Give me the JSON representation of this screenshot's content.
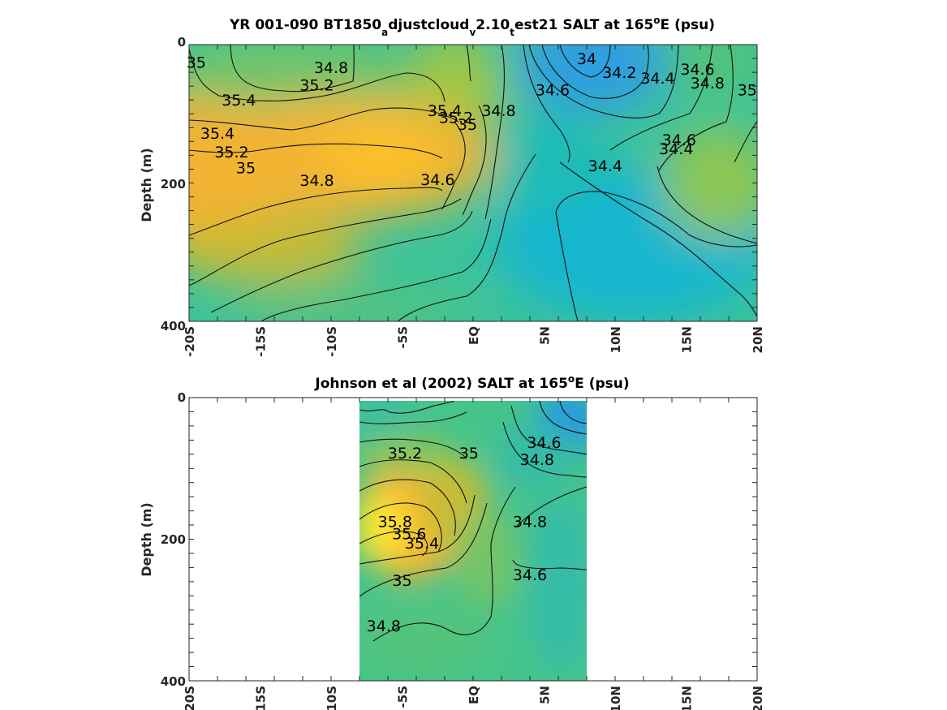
{
  "chart_data": [
    {
      "type": "heatmap",
      "title": {
        "pre": "YR 001-090 BT1850",
        "sub1": "a",
        "mid1": "djustcloud",
        "sub2": "v",
        "mid2": "2.10",
        "sub3": "t",
        "mid3": "est21 SALT at 165",
        "sup": "o",
        "post": "E (psu)"
      },
      "ylabel": "Depth (m)",
      "xlim": [
        -20,
        20
      ],
      "ylim": [
        0,
        400
      ],
      "y_reversed": true,
      "xticklabels": [
        "-20S",
        "-15S",
        "-10S",
        "-5S",
        "EQ",
        "5N",
        "10N",
        "15N",
        "20N"
      ],
      "yticklabels": [
        "0",
        "200",
        "400"
      ],
      "data_extent_x": [
        -20,
        20
      ],
      "field_samples": [
        {
          "lat": -19,
          "depth": 200,
          "salt": 35.5
        },
        {
          "lat": -6,
          "depth": 190,
          "salt": 35.55
        },
        {
          "lat": -12,
          "depth": 40,
          "salt": 34.75
        },
        {
          "lat": 8,
          "depth": 30,
          "salt": 33.95
        },
        {
          "lat": 10,
          "depth": 330,
          "salt": 34.35
        },
        {
          "lat": 19,
          "depth": 200,
          "salt": 34.95
        }
      ],
      "contour_labels": [
        {
          "text": "35",
          "lat": -19.5,
          "depth": 25
        },
        {
          "text": "34.8",
          "lat": -10,
          "depth": 33
        },
        {
          "text": "35.2",
          "lat": -11,
          "depth": 58
        },
        {
          "text": "35.4",
          "lat": -16.5,
          "depth": 80
        },
        {
          "text": "35.4",
          "lat": -18,
          "depth": 128
        },
        {
          "text": "35.2",
          "lat": -17,
          "depth": 155
        },
        {
          "text": "35",
          "lat": -16,
          "depth": 178
        },
        {
          "text": "34.8",
          "lat": -11,
          "depth": 196
        },
        {
          "text": "34.6",
          "lat": -2.5,
          "depth": 195
        },
        {
          "text": "35.4",
          "lat": -2,
          "depth": 95
        },
        {
          "text": "35.2",
          "lat": -1.2,
          "depth": 105
        },
        {
          "text": "35",
          "lat": -0.4,
          "depth": 115
        },
        {
          "text": "34.8",
          "lat": 1.8,
          "depth": 95
        },
        {
          "text": "34.6",
          "lat": 5.6,
          "depth": 65
        },
        {
          "text": "34",
          "lat": 8,
          "depth": 20
        },
        {
          "text": "34.2",
          "lat": 10.3,
          "depth": 40
        },
        {
          "text": "34.4",
          "lat": 13,
          "depth": 48
        },
        {
          "text": "34.6",
          "lat": 15.8,
          "depth": 35
        },
        {
          "text": "34.8",
          "lat": 16.5,
          "depth": 55
        },
        {
          "text": "35",
          "lat": 19.3,
          "depth": 65
        },
        {
          "text": "34.4",
          "lat": 9.3,
          "depth": 175
        },
        {
          "text": "34.6",
          "lat": 14.5,
          "depth": 137
        },
        {
          "text": "34.4",
          "lat": 14.3,
          "depth": 150
        }
      ]
    },
    {
      "type": "heatmap",
      "title": {
        "pre": "Johnson et al (2002) SALT at 165",
        "sup": "o",
        "post": "E (psu)"
      },
      "ylabel": "Depth (m)",
      "xlim": [
        -20,
        20
      ],
      "ylim": [
        0,
        400
      ],
      "y_reversed": true,
      "xticklabels": [
        "-20S",
        "-15S",
        "-10S",
        "-5S",
        "EQ",
        "5N",
        "10N",
        "15N",
        "20N"
      ],
      "yticklabels": [
        "0",
        "200",
        "400"
      ],
      "data_extent_x": [
        -8,
        8
      ],
      "field_samples": [
        {
          "lat": -7,
          "depth": 170,
          "salt": 35.85
        },
        {
          "lat": 7,
          "depth": 20,
          "salt": 34.3
        },
        {
          "lat": 0,
          "depth": 320,
          "salt": 34.75
        }
      ],
      "contour_labels": [
        {
          "text": "35.2",
          "lat": -4.8,
          "depth": 78
        },
        {
          "text": "35",
          "lat": -0.3,
          "depth": 78
        },
        {
          "text": "34.6",
          "lat": 5,
          "depth": 63
        },
        {
          "text": "34.8",
          "lat": 4.5,
          "depth": 87
        },
        {
          "text": "35.8",
          "lat": -5.5,
          "depth": 175
        },
        {
          "text": "35.6",
          "lat": -4.5,
          "depth": 192
        },
        {
          "text": "35.4",
          "lat": -3.6,
          "depth": 205
        },
        {
          "text": "34.8",
          "lat": 4,
          "depth": 175
        },
        {
          "text": "35",
          "lat": -5,
          "depth": 258
        },
        {
          "text": "34.6",
          "lat": 4,
          "depth": 250
        },
        {
          "text": "34.8",
          "lat": -6.3,
          "depth": 322
        }
      ]
    }
  ]
}
